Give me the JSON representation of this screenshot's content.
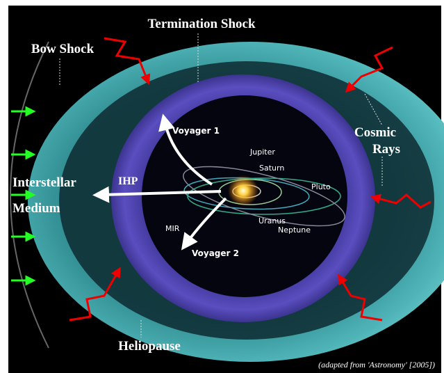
{
  "labels": {
    "termination_shock": "Termination Shock",
    "bow_shock": "Bow Shock",
    "cosmic_rays": [
      "Cosmic",
      "Rays"
    ],
    "interstellar_medium": [
      "Interstellar",
      "Medium"
    ],
    "ihp": "IHP",
    "heliopause": "Heliopause",
    "voyager_1": "Voyager 1",
    "voyager_2": "Voyager 2",
    "mir": "MIR",
    "planets": [
      "Jupiter",
      "Saturn",
      "Uranus",
      "Neptune",
      "Pluto"
    ],
    "caption": "(adapted from 'Astronomy' [2005])"
  }
}
